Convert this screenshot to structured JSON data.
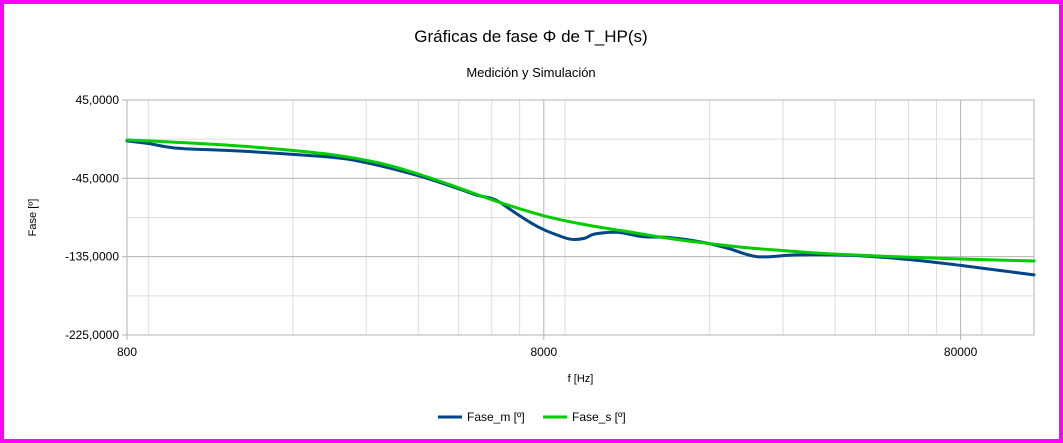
{
  "chart_data": {
    "type": "line",
    "title": "Gráficas de fase Φ de T_HP(s)",
    "subtitle": "Medición y Simulación",
    "xlabel": "f [Hz]",
    "ylabel": "Fase [º]",
    "xscale": "log",
    "xlim": [
      800,
      120000
    ],
    "ylim": [
      -225,
      45
    ],
    "x_ticks": [
      800,
      8000,
      80000
    ],
    "x_tick_labels": [
      "800",
      "8000",
      "80000"
    ],
    "y_ticks": [
      45,
      -45,
      -135,
      -225
    ],
    "y_tick_labels": [
      "45,0000",
      "-45,0000",
      "-135,0000",
      "-225,0000"
    ],
    "grid": true,
    "legend_position": "bottom",
    "series": [
      {
        "name": "Fase_m [º]",
        "color": "#004586",
        "x": [
          800,
          900,
          1000,
          1100,
          1400,
          1800,
          2500,
          3000,
          4000,
          5000,
          5500,
          6000,
          6300,
          6800,
          7500,
          8000,
          8600,
          9300,
          10000,
          10600,
          12000,
          13800,
          16000,
          19000,
          22000,
          26000,
          32000,
          40000,
          50000,
          65000,
          80000,
          100000,
          120000
        ],
        "y": [
          -2,
          -5,
          -9,
          -11,
          -13,
          -16,
          -21,
          -27,
          -42,
          -57,
          -64,
          -68,
          -73,
          -84,
          -97,
          -104,
          -110,
          -115,
          -114,
          -109,
          -107,
          -112,
          -113,
          -118,
          -125,
          -135,
          -133,
          -133,
          -135,
          -140,
          -145,
          -151,
          -156
        ]
      },
      {
        "name": "Fase_s [º]",
        "color": "#00cc00",
        "x": [
          800,
          1000,
          1300,
          1800,
          2500,
          3200,
          4000,
          5000,
          6300,
          8000,
          10000,
          12600,
          16000,
          20000,
          25000,
          32000,
          40000,
          63000,
          100000,
          120000
        ],
        "y": [
          -1,
          -3,
          -6,
          -11,
          -18,
          -27,
          -40,
          -56,
          -73,
          -88,
          -98,
          -106,
          -114,
          -120,
          -125,
          -129,
          -132,
          -136,
          -139,
          -140
        ]
      }
    ]
  }
}
